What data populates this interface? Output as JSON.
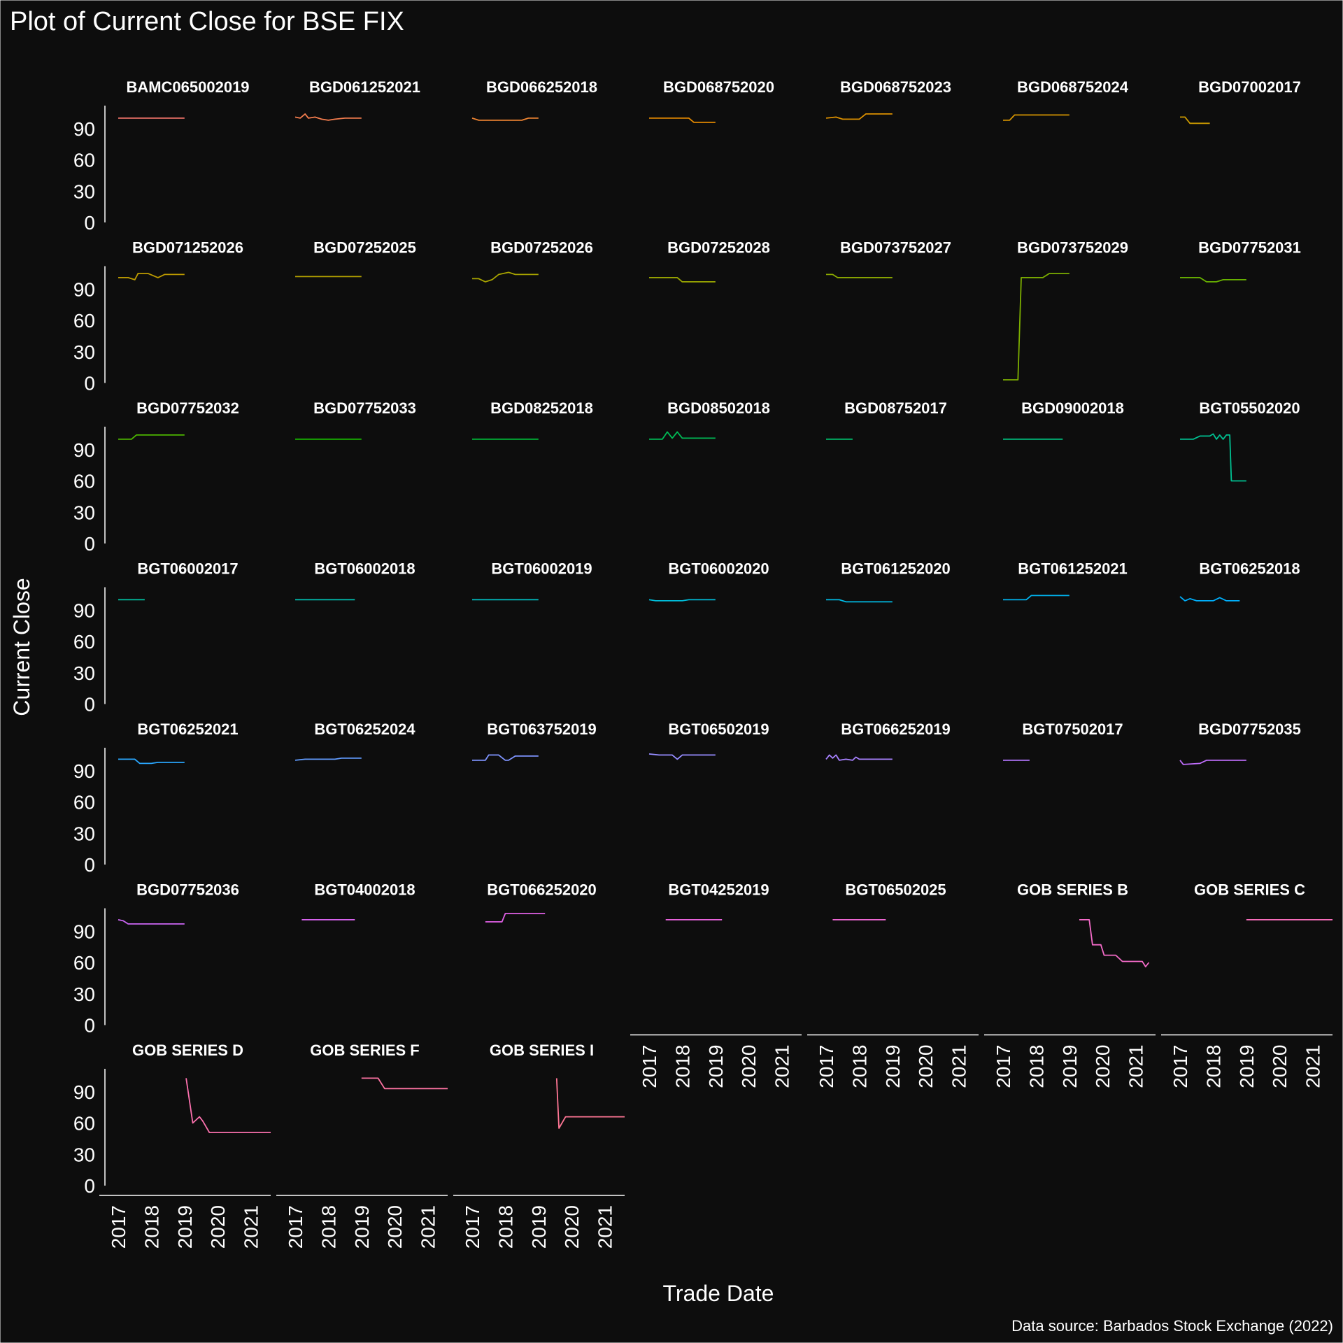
{
  "chart_data": {
    "type": "line",
    "title": "Plot of Current Close for BSE FIX",
    "xlabel": "Trade Date",
    "ylabel": "Current Close",
    "caption": "Data source: Barbados Stock Exchange (2022)",
    "xlim": [
      2016.6,
      2021.6
    ],
    "ylim": [
      0,
      112
    ],
    "x_ticks": [
      "2017",
      "2018",
      "2019",
      "2020",
      "2021"
    ],
    "y_ticks": [
      0,
      30,
      60,
      90
    ],
    "facet_columns": 7,
    "grid": false,
    "legend": "none",
    "background": "#0d0d0d",
    "series": [
      {
        "name": "BAMC065002019",
        "color": "#F8766D",
        "x": [
          2017.0,
          2019.0
        ],
        "y": [
          100,
          100
        ]
      },
      {
        "name": "BGD061252021",
        "color": "#F47D4E",
        "x": [
          2017.0,
          2017.15,
          2017.3,
          2017.4,
          2017.6,
          2017.8,
          2018.0,
          2018.2,
          2018.5,
          2018.7,
          2019.0
        ],
        "y": [
          101,
          100,
          104,
          100,
          101,
          99,
          98,
          99,
          100,
          100,
          100
        ]
      },
      {
        "name": "BGD066252018",
        "color": "#EE8432",
        "x": [
          2017.0,
          2017.2,
          2017.5,
          2018.5,
          2018.7,
          2019.0
        ],
        "y": [
          100,
          98,
          98,
          98,
          100,
          100
        ]
      },
      {
        "name": "BGD068752020",
        "color": "#E58A00",
        "x": [
          2017.0,
          2018.2,
          2018.35,
          2019.0
        ],
        "y": [
          100,
          100,
          96,
          96
        ]
      },
      {
        "name": "BGD068752023",
        "color": "#DC9000",
        "x": [
          2017.0,
          2017.3,
          2017.5,
          2018.0,
          2018.2,
          2018.4,
          2019.0
        ],
        "y": [
          100,
          101,
          99,
          99,
          104,
          104,
          104
        ]
      },
      {
        "name": "BGD068752024",
        "color": "#D39200",
        "x": [
          2017.0,
          2017.2,
          2017.35,
          2018.0,
          2019.0
        ],
        "y": [
          98,
          98,
          103,
          103,
          103
        ]
      },
      {
        "name": "BGD07002017",
        "color": "#C99800",
        "x": [
          2017.0,
          2017.15,
          2017.3,
          2017.9
        ],
        "y": [
          101,
          101,
          95,
          95
        ]
      },
      {
        "name": "BGD071252026",
        "color": "#BE9C00",
        "x": [
          2017.0,
          2017.3,
          2017.5,
          2017.6,
          2017.9,
          2018.2,
          2018.4,
          2018.6,
          2019.0
        ],
        "y": [
          101,
          101,
          99,
          105,
          105,
          101,
          104,
          104,
          104
        ]
      },
      {
        "name": "BGD07252025",
        "color": "#B3A000",
        "x": [
          2017.0,
          2019.0
        ],
        "y": [
          102,
          102
        ]
      },
      {
        "name": "BGD07252026",
        "color": "#A8A400",
        "x": [
          2017.0,
          2017.2,
          2017.4,
          2017.6,
          2017.8,
          2018.1,
          2018.3,
          2019.0
        ],
        "y": [
          100,
          100,
          97,
          99,
          104,
          106,
          104,
          104
        ]
      },
      {
        "name": "BGD07252028",
        "color": "#9BA800",
        "x": [
          2017.0,
          2017.85,
          2018.0,
          2019.0
        ],
        "y": [
          101,
          101,
          97,
          97
        ]
      },
      {
        "name": "BGD073752027",
        "color": "#8DAB00",
        "x": [
          2017.0,
          2017.2,
          2017.35,
          2019.0
        ],
        "y": [
          104,
          104,
          101,
          101
        ]
      },
      {
        "name": "BGD073752029",
        "color": "#7CAE00",
        "x": [
          2017.0,
          2017.45,
          2017.55,
          2018.2,
          2018.4,
          2019.0
        ],
        "y": [
          3,
          3,
          101,
          101,
          105,
          105
        ]
      },
      {
        "name": "BGD07752031",
        "color": "#68B200",
        "x": [
          2017.0,
          2017.6,
          2017.8,
          2018.1,
          2018.3,
          2019.0
        ],
        "y": [
          101,
          101,
          97,
          97,
          99,
          99
        ]
      },
      {
        "name": "BGD07752032",
        "color": "#4CB500",
        "x": [
          2017.0,
          2017.4,
          2017.55,
          2019.0
        ],
        "y": [
          100,
          100,
          104,
          104
        ]
      },
      {
        "name": "BGD07752033",
        "color": "#17B800",
        "x": [
          2017.0,
          2019.0
        ],
        "y": [
          100,
          100
        ]
      },
      {
        "name": "BGD08252018",
        "color": "#00BA38",
        "x": [
          2017.0,
          2019.0
        ],
        "y": [
          100,
          100
        ]
      },
      {
        "name": "BGD08502018",
        "color": "#00BC56",
        "x": [
          2017.0,
          2017.4,
          2017.55,
          2017.7,
          2017.85,
          2018.0,
          2018.15,
          2019.0
        ],
        "y": [
          100,
          100,
          107,
          101,
          107,
          101,
          101,
          101
        ]
      },
      {
        "name": "BGD08752017",
        "color": "#00BE6C",
        "x": [
          2017.0,
          2017.8
        ],
        "y": [
          100,
          100
        ]
      },
      {
        "name": "BGD09002018",
        "color": "#00C07F",
        "x": [
          2017.0,
          2018.8
        ],
        "y": [
          100,
          100
        ]
      },
      {
        "name": "BGT05502020",
        "color": "#00C091",
        "x": [
          2017.0,
          2017.4,
          2017.6,
          2017.9,
          2018.0,
          2018.1,
          2018.2,
          2018.3,
          2018.4,
          2018.5,
          2018.55,
          2018.6,
          2019.0
        ],
        "y": [
          100,
          100,
          103,
          103,
          105,
          100,
          104,
          100,
          104,
          104,
          60,
          60,
          60
        ]
      },
      {
        "name": "BGT06002017",
        "color": "#00C1A2",
        "x": [
          2017.0,
          2017.8
        ],
        "y": [
          100,
          100
        ]
      },
      {
        "name": "BGT06002018",
        "color": "#00C0B2",
        "x": [
          2017.0,
          2018.8
        ],
        "y": [
          100,
          100
        ]
      },
      {
        "name": "BGT06002019",
        "color": "#00BFC2",
        "x": [
          2017.0,
          2019.0
        ],
        "y": [
          100,
          100
        ]
      },
      {
        "name": "BGT06002020",
        "color": "#00BCD8",
        "x": [
          2017.0,
          2017.2,
          2018.0,
          2018.2,
          2019.0
        ],
        "y": [
          100,
          99,
          99,
          100,
          100
        ]
      },
      {
        "name": "BGT061252020",
        "color": "#00B9E3",
        "x": [
          2017.0,
          2017.4,
          2017.6,
          2019.0
        ],
        "y": [
          100,
          100,
          98,
          98
        ]
      },
      {
        "name": "BGT061252021",
        "color": "#00B4EF",
        "x": [
          2017.0,
          2017.7,
          2017.85,
          2019.0
        ],
        "y": [
          100,
          100,
          104,
          104
        ]
      },
      {
        "name": "BGT06252018",
        "color": "#00AEFA",
        "x": [
          2017.0,
          2017.15,
          2017.3,
          2017.5,
          2017.7,
          2018.0,
          2018.2,
          2018.4,
          2018.8
        ],
        "y": [
          103,
          99,
          101,
          99,
          99,
          99,
          102,
          99,
          99
        ]
      },
      {
        "name": "BGT06252021",
        "color": "#2AA7FF",
        "x": [
          2017.0,
          2017.5,
          2017.65,
          2018.0,
          2018.2,
          2019.0
        ],
        "y": [
          101,
          101,
          97,
          97,
          98,
          98
        ]
      },
      {
        "name": "BGT06252024",
        "color": "#619CFF",
        "x": [
          2017.0,
          2017.3,
          2018.2,
          2018.4,
          2019.0
        ],
        "y": [
          100,
          101,
          101,
          102,
          102
        ]
      },
      {
        "name": "BGT063752019",
        "color": "#7F94FF",
        "x": [
          2017.0,
          2017.4,
          2017.5,
          2017.8,
          2018.0,
          2018.1,
          2018.3,
          2018.5,
          2019.0
        ],
        "y": [
          100,
          100,
          105,
          105,
          100,
          100,
          104,
          104,
          104
        ]
      },
      {
        "name": "BGT06502019",
        "color": "#958CFF",
        "x": [
          2017.0,
          2017.3,
          2017.7,
          2017.85,
          2018.0,
          2018.3,
          2019.0
        ],
        "y": [
          106,
          105,
          105,
          101,
          105,
          105,
          105
        ]
      },
      {
        "name": "BGT066252019",
        "color": "#A781FF",
        "x": [
          2017.0,
          2017.1,
          2017.2,
          2017.3,
          2017.4,
          2017.6,
          2017.8,
          2017.9,
          2018.0,
          2018.2,
          2019.0
        ],
        "y": [
          101,
          105,
          102,
          105,
          100,
          101,
          100,
          103,
          101,
          101,
          101
        ]
      },
      {
        "name": "BGT07502017",
        "color": "#B476FF",
        "x": [
          2017.0,
          2017.8
        ],
        "y": [
          100,
          100
        ]
      },
      {
        "name": "BGD07752035",
        "color": "#C06EFD",
        "x": [
          2017.0,
          2017.1,
          2017.6,
          2017.8,
          2019.0
        ],
        "y": [
          100,
          96,
          97,
          100,
          100
        ]
      },
      {
        "name": "BGD07752036",
        "color": "#CC66F5",
        "x": [
          2017.0,
          2017.15,
          2017.3,
          2019.0
        ],
        "y": [
          101,
          100,
          97,
          97
        ]
      },
      {
        "name": "BGT04002018",
        "color": "#D663EE",
        "x": [
          2017.2,
          2018.8
        ],
        "y": [
          101,
          101
        ]
      },
      {
        "name": "BGT066252020",
        "color": "#E060E6",
        "x": [
          2017.4,
          2017.9,
          2018.0,
          2019.2
        ],
        "y": [
          99,
          99,
          107,
          107
        ]
      },
      {
        "name": "BGT04252019",
        "color": "#E863DC",
        "x": [
          2017.5,
          2019.2
        ],
        "y": [
          101,
          101
        ]
      },
      {
        "name": "BGT06502025",
        "color": "#EE67D3",
        "x": [
          2017.2,
          2018.8
        ],
        "y": [
          101,
          101
        ]
      },
      {
        "name": "GOB SERIES B",
        "color": "#F46BC8",
        "x": [
          2019.3,
          2019.6,
          2019.7,
          2019.95,
          2020.05,
          2020.4,
          2020.6,
          2021.2,
          2021.3,
          2021.4
        ],
        "y": [
          101,
          101,
          77,
          77,
          67,
          67,
          61,
          61,
          56,
          60
        ]
      },
      {
        "name": "GOB SERIES C",
        "color": "#F96EBC",
        "x": [
          2019.0,
          2021.6
        ],
        "y": [
          101,
          101
        ]
      },
      {
        "name": "GOB SERIES D",
        "color": "#FC71AE",
        "x": [
          2019.05,
          2019.25,
          2019.45,
          2019.55,
          2019.75,
          2021.6
        ],
        "y": [
          103,
          60,
          66,
          62,
          51,
          51
        ]
      },
      {
        "name": "GOB SERIES F",
        "color": "#FD73A2",
        "x": [
          2019.0,
          2019.5,
          2019.7,
          2021.6
        ],
        "y": [
          103,
          103,
          93,
          93
        ]
      },
      {
        "name": "GOB SERIES I",
        "color": "#FF7695",
        "x": [
          2019.55,
          2019.62,
          2019.82,
          2021.6
        ],
        "y": [
          103,
          55,
          66,
          66
        ]
      }
    ]
  }
}
